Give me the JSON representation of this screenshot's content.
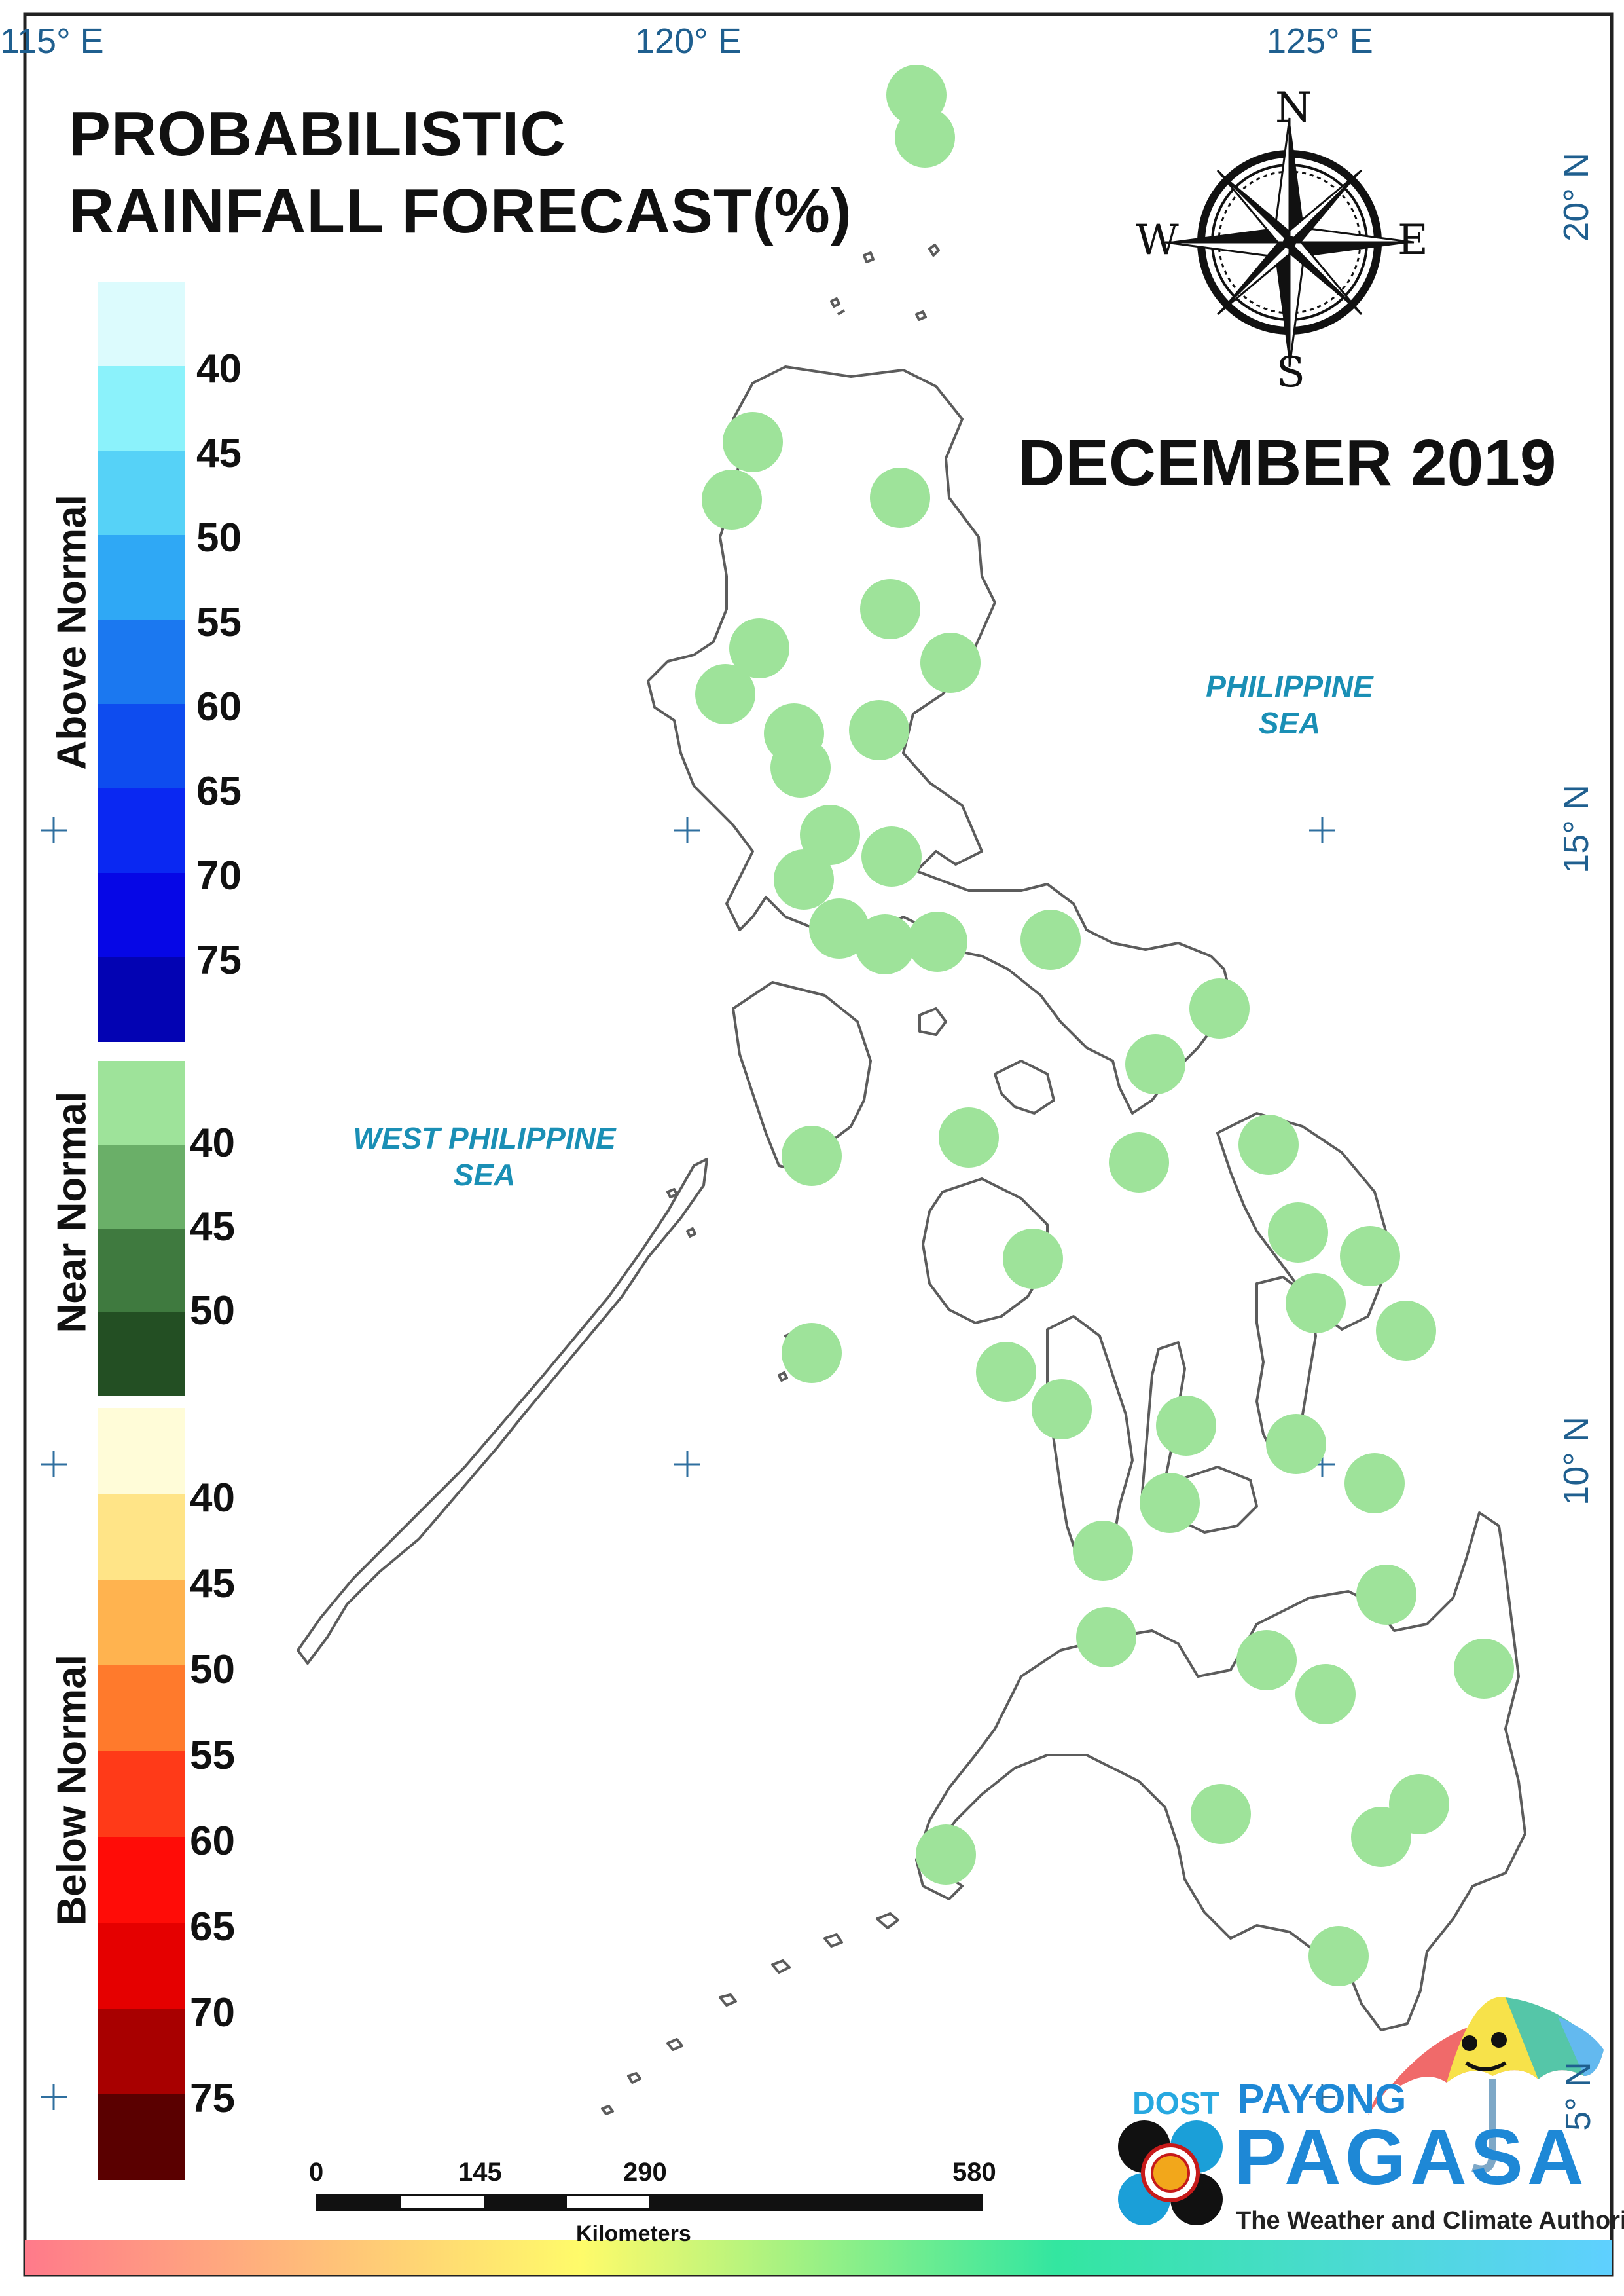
{
  "title_line1": "PROBABILISTIC",
  "title_line2": "RAINFALL FORECAST(%)",
  "month": "DECEMBER 2019",
  "compass": {
    "n": "N",
    "s": "S",
    "e": "E",
    "w": "W"
  },
  "grid": {
    "lon_labels": [
      "115° E",
      "120° E",
      "125° E"
    ],
    "lat_labels": [
      "20° N",
      "15° N",
      "10° N",
      "5° N"
    ]
  },
  "seas": {
    "east_line1": "PHILIPPINE",
    "east_line2": "SEA",
    "west_line1": "WEST PHILIPPINE",
    "west_line2": "SEA"
  },
  "legend": {
    "above": {
      "label": "Above Normal",
      "ticks": [
        "40",
        "45",
        "50",
        "55",
        "60",
        "65",
        "70",
        "75"
      ],
      "colors": [
        "#dcfbfd",
        "#8bf2fb",
        "#56d2f7",
        "#2fa8f5",
        "#1b78f0",
        "#0e4cef",
        "#0a28f2",
        "#0607e6",
        "#0303b3"
      ]
    },
    "near": {
      "label": "Near Normal",
      "ticks": [
        "40",
        "45",
        "50"
      ],
      "colors": [
        "#9ee39a",
        "#6aaf68",
        "#3f7a3f",
        "#234f23"
      ]
    },
    "below": {
      "label": "Below Normal",
      "ticks": [
        "40",
        "45",
        "50",
        "55",
        "60",
        "65",
        "70",
        "75"
      ],
      "colors": [
        "#fffcd8",
        "#ffe487",
        "#ffb34f",
        "#ff7a2c",
        "#ff3a18",
        "#ff0c07",
        "#e50000",
        "#a80000",
        "#5a0000"
      ]
    }
  },
  "scale_bar": {
    "labels": [
      "0",
      "145",
      "290",
      "580"
    ],
    "unit": "Kilometers"
  },
  "logo": {
    "dost": "DOST",
    "payong": "PAYONG",
    "pagasa": "PAGASA",
    "tagline": "The Weather and Climate Authority"
  },
  "colors": {
    "forecast_station": "#9ee39a",
    "coast": "#5c5c5c",
    "frame": "#222222",
    "grid_label": "#1f5f8f",
    "sea_label": "#1a8fb5"
  },
  "stations_forecast": "Near Normal 40"
}
